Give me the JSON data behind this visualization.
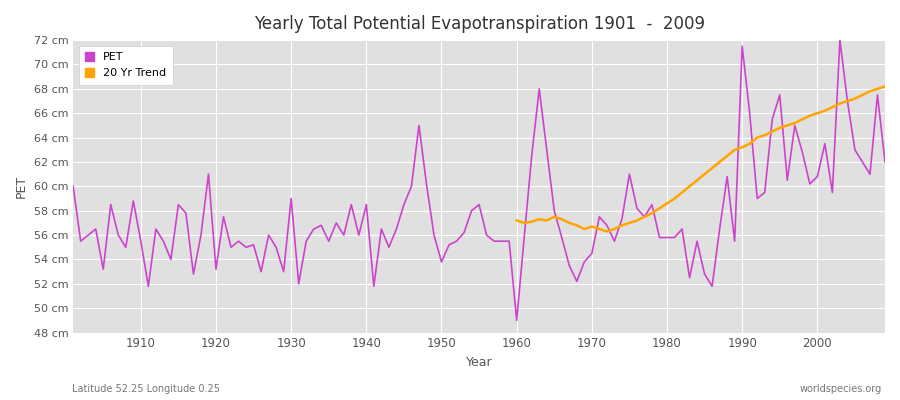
{
  "title": "Yearly Total Potential Evapotranspiration 1901  -  2009",
  "xlabel": "Year",
  "ylabel": "PET",
  "subtitle_left": "Latitude 52.25 Longitude 0.25",
  "subtitle_right": "worldspecies.org",
  "ylim": [
    48,
    72
  ],
  "yticks": [
    48,
    50,
    52,
    54,
    56,
    58,
    60,
    62,
    64,
    66,
    68,
    70,
    72
  ],
  "ytick_labels": [
    "48 cm",
    "50 cm",
    "52 cm",
    "54 cm",
    "56 cm",
    "58 cm",
    "60 cm",
    "62 cm",
    "64 cm",
    "66 cm",
    "68 cm",
    "70 cm",
    "72 cm"
  ],
  "xlim": [
    1901,
    2009
  ],
  "fig_bg_color": "#ffffff",
  "plot_bg_color": "#e0e0e0",
  "grid_color": "#ffffff",
  "pet_color": "#cc44cc",
  "trend_color": "#ffa500",
  "pet_label": "PET",
  "trend_label": "20 Yr Trend",
  "years": [
    1901,
    1902,
    1903,
    1904,
    1905,
    1906,
    1907,
    1908,
    1909,
    1910,
    1911,
    1912,
    1913,
    1914,
    1915,
    1916,
    1917,
    1918,
    1919,
    1920,
    1921,
    1922,
    1923,
    1924,
    1925,
    1926,
    1927,
    1928,
    1929,
    1930,
    1931,
    1932,
    1933,
    1934,
    1935,
    1936,
    1937,
    1938,
    1939,
    1940,
    1941,
    1942,
    1943,
    1944,
    1945,
    1946,
    1947,
    1948,
    1949,
    1950,
    1951,
    1952,
    1953,
    1954,
    1955,
    1956,
    1957,
    1958,
    1959,
    1960,
    1961,
    1962,
    1963,
    1964,
    1965,
    1966,
    1967,
    1968,
    1969,
    1970,
    1971,
    1972,
    1973,
    1974,
    1975,
    1976,
    1977,
    1978,
    1979,
    1980,
    1981,
    1982,
    1983,
    1984,
    1985,
    1986,
    1987,
    1988,
    1989,
    1990,
    1991,
    1992,
    1993,
    1994,
    1995,
    1996,
    1997,
    1998,
    1999,
    2000,
    2001,
    2002,
    2003,
    2004,
    2005,
    2006,
    2007,
    2008,
    2009
  ],
  "pet_values": [
    60.0,
    55.5,
    56.0,
    56.5,
    53.2,
    58.5,
    56.0,
    55.0,
    58.8,
    55.5,
    51.8,
    56.5,
    55.5,
    54.0,
    58.5,
    57.8,
    52.8,
    56.0,
    61.0,
    53.2,
    57.5,
    55.0,
    55.5,
    55.0,
    55.2,
    53.0,
    56.0,
    55.0,
    53.0,
    59.0,
    52.0,
    55.5,
    56.5,
    56.8,
    55.5,
    57.0,
    56.0,
    58.5,
    56.0,
    58.5,
    51.8,
    56.5,
    55.0,
    56.5,
    58.5,
    60.0,
    65.0,
    60.2,
    56.0,
    53.8,
    55.2,
    55.5,
    56.2,
    58.0,
    58.5,
    56.0,
    55.5,
    55.5,
    55.5,
    49.0,
    55.8,
    62.5,
    68.0,
    63.0,
    58.0,
    55.8,
    53.5,
    52.2,
    53.8,
    54.5,
    57.5,
    56.8,
    55.5,
    57.3,
    61.0,
    58.2,
    57.5,
    58.5,
    55.8,
    55.8,
    55.8,
    56.5,
    52.5,
    55.5,
    52.8,
    51.8,
    56.5,
    60.8,
    55.5,
    71.5,
    66.0,
    59.0,
    59.5,
    65.5,
    67.5,
    60.5,
    65.0,
    62.8,
    60.2,
    60.8,
    63.5,
    59.5,
    72.0,
    67.0,
    63.0,
    62.0,
    61.0,
    67.5,
    62.0
  ],
  "trend_start_year": 1960,
  "trend_values": [
    57.2,
    57.0,
    57.1,
    57.3,
    57.2,
    57.5,
    57.3,
    57.0,
    56.8,
    56.5,
    56.7,
    56.5,
    56.3,
    56.5,
    56.8,
    57.0,
    57.2,
    57.5,
    57.8,
    58.2,
    58.6,
    59.0,
    59.5,
    60.0,
    60.5,
    61.0,
    61.5,
    62.0,
    62.5,
    63.0,
    63.2,
    63.5,
    64.0,
    64.2,
    64.5,
    64.8,
    65.0,
    65.2,
    65.5,
    65.8,
    66.0,
    66.2,
    66.5,
    66.8,
    67.0,
    67.2,
    67.5,
    67.8,
    68.0,
    68.2
  ]
}
